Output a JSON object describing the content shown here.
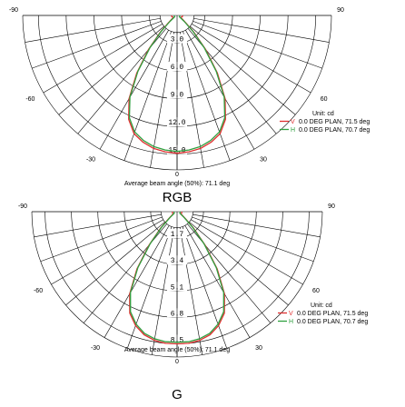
{
  "chart_data": [
    {
      "type": "polar",
      "title": "RGB",
      "unit_label": "Unit: cd",
      "footer": "Average beam angle (50%): 71.1 deg",
      "angle_labels": [
        "-90",
        "-60",
        "-30",
        "0",
        "30",
        "60",
        "90"
      ],
      "angle_ticks_deg": [
        -90,
        -60,
        -30,
        0,
        30,
        60,
        90
      ],
      "rmax": 16.7,
      "ring_values": [
        3.0,
        6.0,
        9.0,
        12.0,
        15.0
      ],
      "ring_labels": [
        "3.0",
        "6.0",
        "9.0",
        "12.0",
        "15.0"
      ],
      "legend_position": "right",
      "series": [
        {
          "marker": "V",
          "name": "0.0  DEG PLAN, 71.5 deg",
          "color": "#e03030",
          "angles_deg": [
            -90,
            -80,
            -70,
            -60,
            -50,
            -45,
            -40,
            -35,
            -30,
            -25,
            -20,
            -15,
            -10,
            -5,
            0,
            5,
            10,
            15,
            20,
            25,
            30,
            35,
            40,
            45,
            50,
            60,
            70,
            80,
            90
          ],
          "values": [
            0.6,
            0.6,
            0.5,
            0.5,
            1.2,
            2.6,
            4.8,
            7.6,
            10.4,
            12.4,
            13.6,
            14.2,
            14.6,
            14.8,
            14.9,
            14.8,
            14.6,
            14.2,
            13.6,
            12.4,
            10.4,
            7.6,
            4.8,
            2.6,
            1.2,
            0.5,
            0.5,
            0.6,
            0.6
          ]
        },
        {
          "marker": "H",
          "name": "0.0  DEG PLAN, 70.7 deg",
          "color": "#30a040",
          "angles_deg": [
            -90,
            -80,
            -70,
            -60,
            -50,
            -45,
            -40,
            -35,
            -30,
            -25,
            -20,
            -15,
            -10,
            -5,
            0,
            5,
            10,
            15,
            20,
            25,
            30,
            35,
            40,
            45,
            50,
            60,
            70,
            80,
            90
          ],
          "values": [
            0.3,
            0.3,
            0.3,
            0.3,
            1.0,
            2.4,
            4.6,
            7.4,
            10.2,
            12.2,
            13.4,
            14.0,
            14.4,
            14.6,
            14.7,
            14.6,
            14.4,
            14.0,
            13.4,
            12.2,
            10.2,
            7.4,
            4.6,
            2.4,
            1.0,
            0.3,
            0.3,
            0.3,
            0.3
          ]
        }
      ]
    },
    {
      "type": "polar",
      "title": "G",
      "unit_label": "Unit: cd",
      "footer": "Average beam angle (50%): 71.1 deg",
      "angle_labels": [
        "-90",
        "-60",
        "-30",
        "0",
        "30",
        "60",
        "90"
      ],
      "angle_ticks_deg": [
        -90,
        -60,
        -30,
        0,
        30,
        60,
        90
      ],
      "rmax": 9.35,
      "ring_values": [
        1.7,
        3.4,
        5.1,
        6.8,
        8.5
      ],
      "ring_labels": [
        "1.7",
        "3.4",
        "5.1",
        "6.8",
        "8.5"
      ],
      "legend_position": "right",
      "series": [
        {
          "marker": "V",
          "name": "0.0  DEG PLAN, 71.5 deg",
          "color": "#e03030",
          "angles_deg": [
            -90,
            -80,
            -70,
            -60,
            -50,
            -45,
            -40,
            -35,
            -30,
            -25,
            -20,
            -15,
            -10,
            -5,
            0,
            5,
            10,
            15,
            20,
            25,
            30,
            35,
            40,
            45,
            50,
            60,
            70,
            80,
            90
          ],
          "values": [
            0.3,
            0.3,
            0.3,
            0.3,
            0.7,
            1.5,
            2.8,
            4.5,
            6.1,
            7.2,
            7.8,
            8.2,
            8.4,
            8.5,
            8.5,
            8.5,
            8.4,
            8.2,
            7.8,
            7.2,
            6.1,
            4.5,
            2.8,
            1.5,
            0.7,
            0.3,
            0.3,
            0.3,
            0.3
          ]
        },
        {
          "marker": "H",
          "name": "0.0  DEG PLAN, 70.7 deg",
          "color": "#30a040",
          "angles_deg": [
            -90,
            -80,
            -70,
            -60,
            -50,
            -45,
            -40,
            -35,
            -30,
            -25,
            -20,
            -15,
            -10,
            -5,
            0,
            5,
            10,
            15,
            20,
            25,
            30,
            35,
            40,
            45,
            50,
            60,
            70,
            80,
            90
          ],
          "values": [
            0.2,
            0.2,
            0.2,
            0.2,
            0.6,
            1.4,
            2.7,
            4.4,
            6.0,
            7.1,
            7.7,
            8.1,
            8.3,
            8.4,
            8.4,
            8.4,
            8.3,
            8.1,
            7.7,
            7.1,
            6.0,
            4.4,
            2.7,
            1.4,
            0.6,
            0.2,
            0.2,
            0.2,
            0.2
          ]
        }
      ]
    }
  ]
}
